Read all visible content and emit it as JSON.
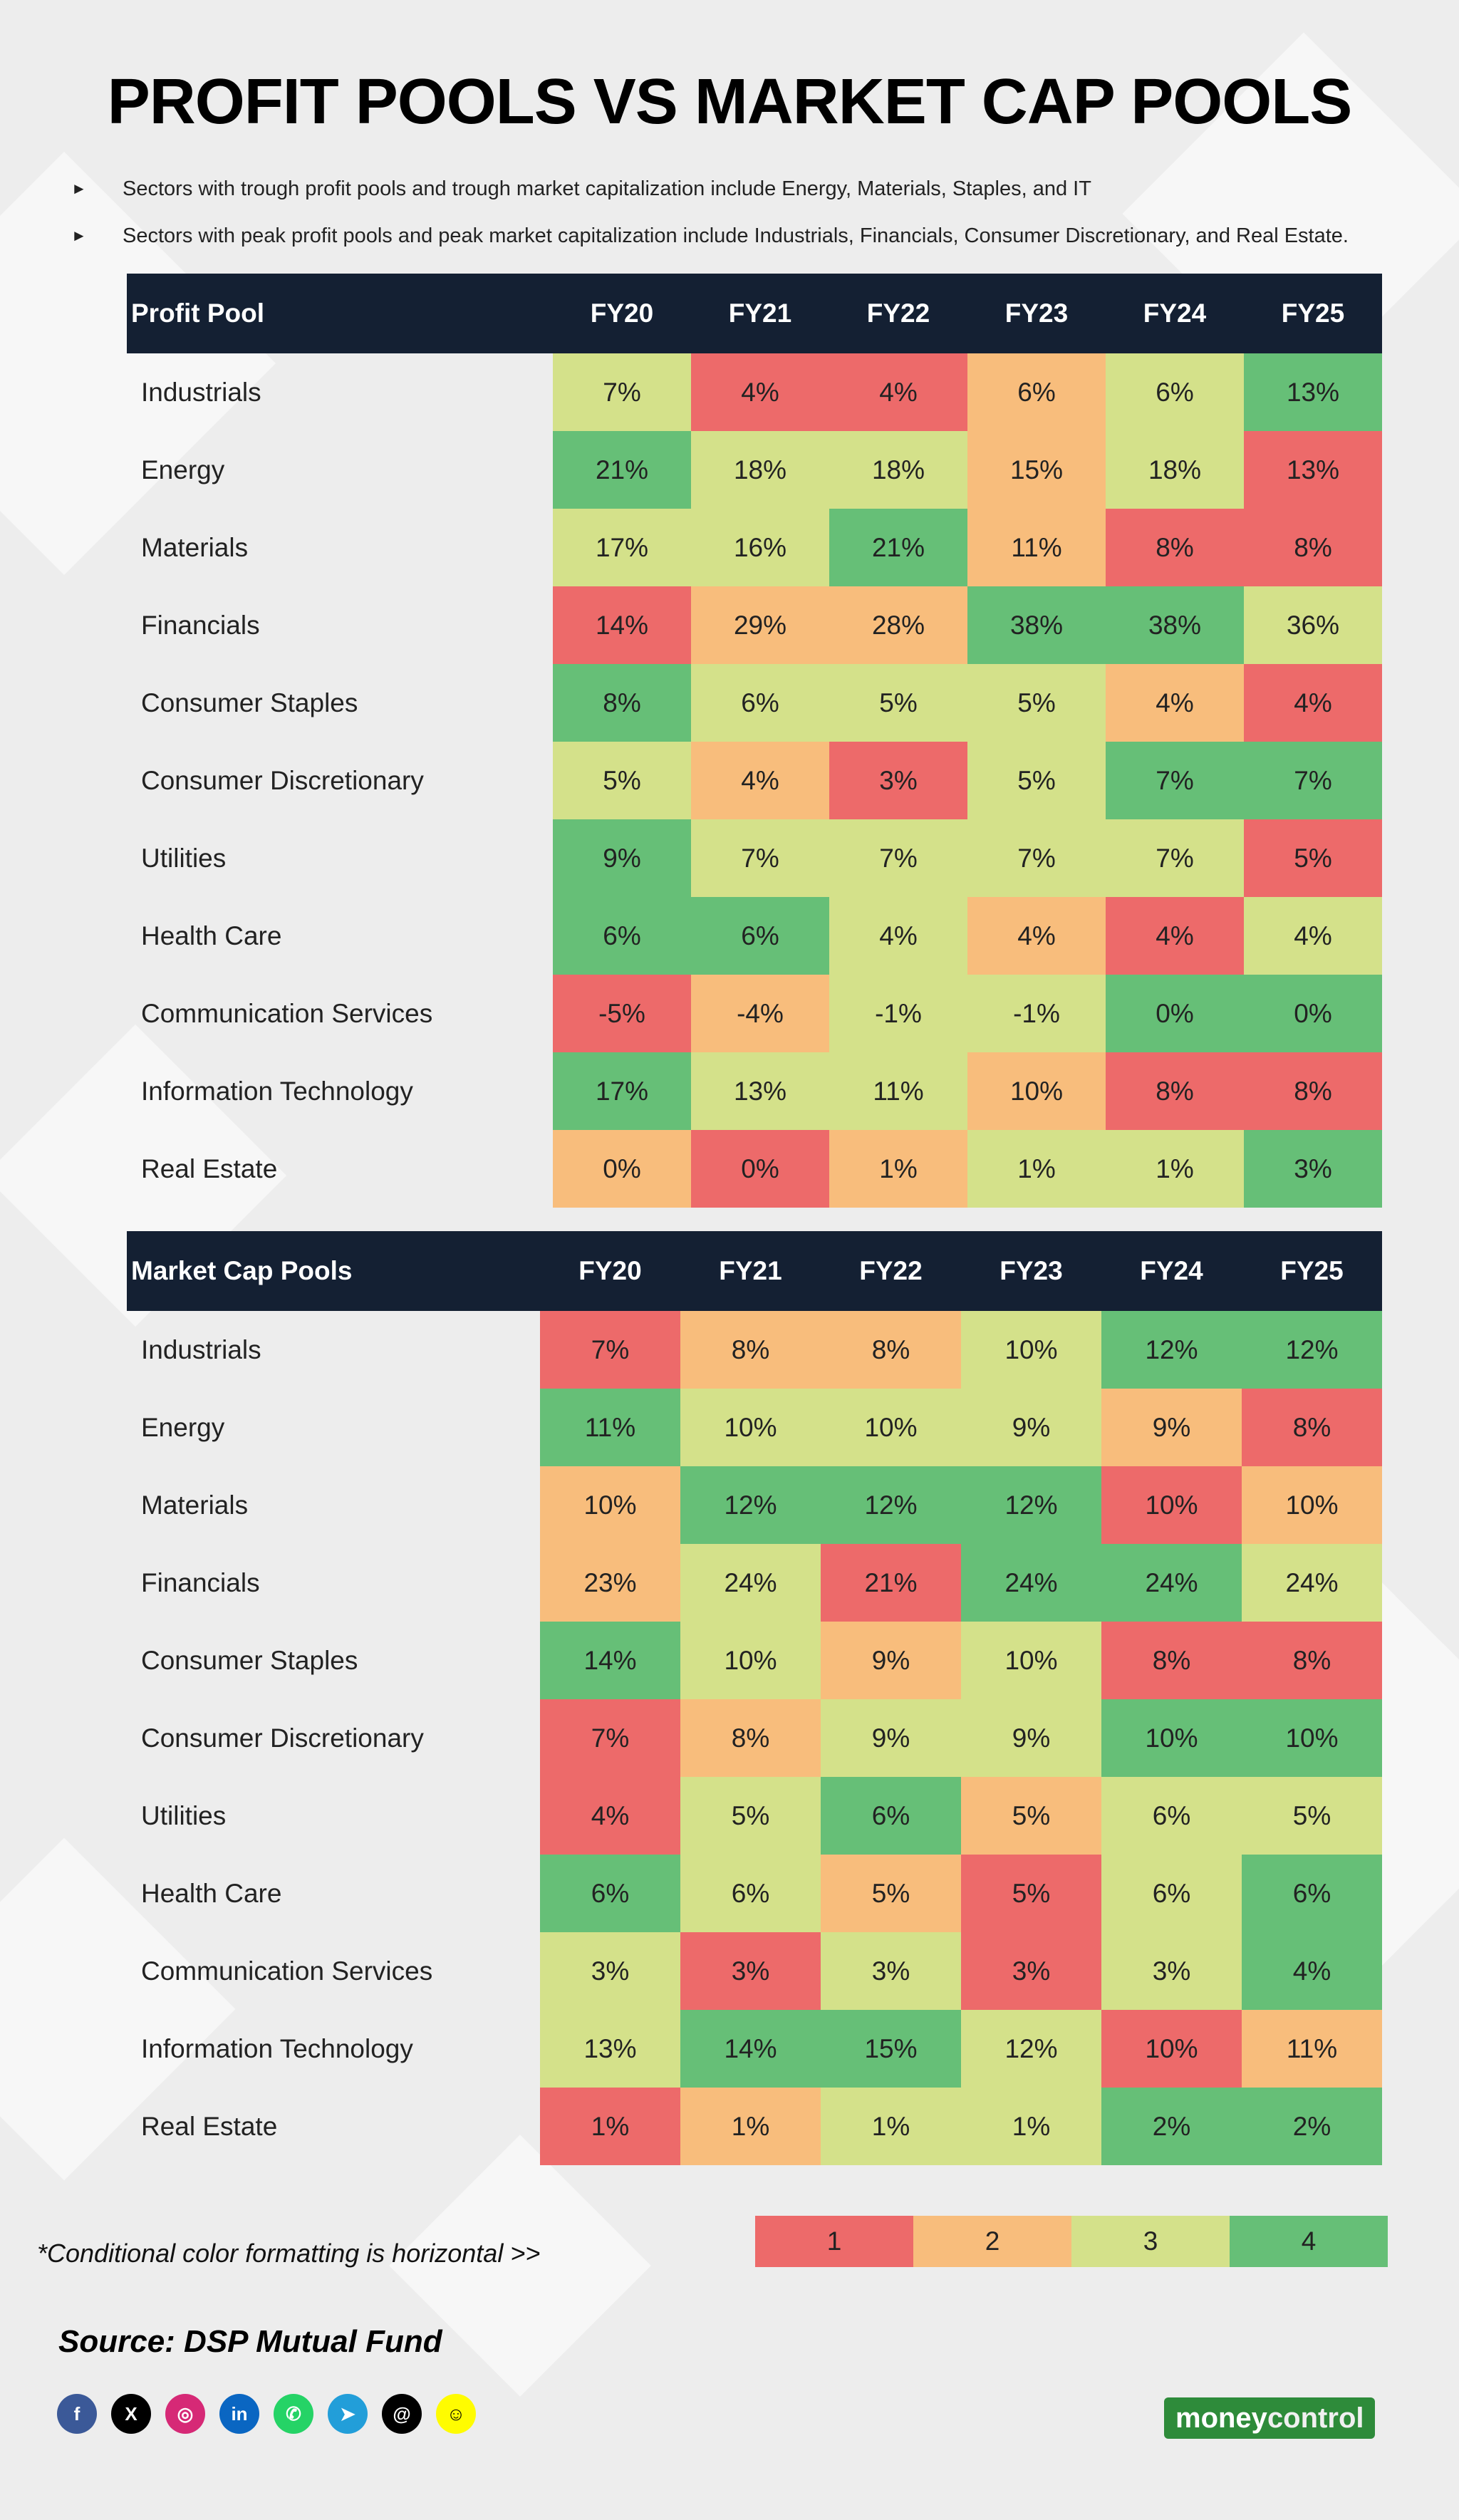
{
  "title": "PROFIT POOLS VS MARKET CAP POOLS",
  "bullets": [
    "Sectors with trough profit pools and trough market capitalization include Energy, Materials, Staples, and IT",
    "Sectors with peak profit pools and peak market capitalization include Industrials, Financials, Consumer Discretionary, and Real Estate."
  ],
  "colors": {
    "1": "#ed6a6a",
    "2": "#f8bd7c",
    "3": "#d4e18a",
    "4": "#66bf77",
    "header": "#142033"
  },
  "chart_data": [
    {
      "type": "heatmap",
      "title": "Profit Pool",
      "columns": [
        "FY20",
        "FY21",
        "FY22",
        "FY23",
        "FY24",
        "FY25"
      ],
      "rows": [
        {
          "sector": "Industrials",
          "values": [
            "7%",
            "4%",
            "4%",
            "6%",
            "6%",
            "13%"
          ],
          "shade": [
            3,
            1,
            1,
            2,
            3,
            4
          ]
        },
        {
          "sector": "Energy",
          "values": [
            "21%",
            "18%",
            "18%",
            "15%",
            "18%",
            "13%"
          ],
          "shade": [
            4,
            3,
            3,
            2,
            3,
            1
          ]
        },
        {
          "sector": "Materials",
          "values": [
            "17%",
            "16%",
            "21%",
            "11%",
            "8%",
            "8%"
          ],
          "shade": [
            3,
            3,
            4,
            2,
            1,
            1
          ]
        },
        {
          "sector": "Financials",
          "values": [
            "14%",
            "29%",
            "28%",
            "38%",
            "38%",
            "36%"
          ],
          "shade": [
            1,
            2,
            2,
            4,
            4,
            3
          ]
        },
        {
          "sector": "Consumer Staples",
          "values": [
            "8%",
            "6%",
            "5%",
            "5%",
            "4%",
            "4%"
          ],
          "shade": [
            4,
            3,
            3,
            3,
            2,
            1
          ]
        },
        {
          "sector": "Consumer Discretionary",
          "values": [
            "5%",
            "4%",
            "3%",
            "5%",
            "7%",
            "7%"
          ],
          "shade": [
            3,
            2,
            1,
            3,
            4,
            4
          ]
        },
        {
          "sector": "Utilities",
          "values": [
            "9%",
            "7%",
            "7%",
            "7%",
            "7%",
            "5%"
          ],
          "shade": [
            4,
            3,
            3,
            3,
            3,
            1
          ]
        },
        {
          "sector": "Health Care",
          "values": [
            "6%",
            "6%",
            "4%",
            "4%",
            "4%",
            "4%"
          ],
          "shade": [
            4,
            4,
            3,
            2,
            1,
            3
          ]
        },
        {
          "sector": "Communication Services",
          "values": [
            "-5%",
            "-4%",
            "-1%",
            "-1%",
            "0%",
            "0%"
          ],
          "shade": [
            1,
            2,
            3,
            3,
            4,
            4
          ]
        },
        {
          "sector": "Information Technology",
          "values": [
            "17%",
            "13%",
            "11%",
            "10%",
            "8%",
            "8%"
          ],
          "shade": [
            4,
            3,
            3,
            2,
            1,
            1
          ]
        },
        {
          "sector": "Real Estate",
          "values": [
            "0%",
            "0%",
            "1%",
            "1%",
            "1%",
            "3%"
          ],
          "shade": [
            2,
            1,
            2,
            3,
            3,
            4
          ]
        }
      ]
    },
    {
      "type": "heatmap",
      "title": "Market Cap Pools",
      "columns": [
        "FY20",
        "FY21",
        "FY22",
        "FY23",
        "FY24",
        "FY25"
      ],
      "rows": [
        {
          "sector": "Industrials",
          "values": [
            "7%",
            "8%",
            "8%",
            "10%",
            "12%",
            "12%"
          ],
          "shade": [
            1,
            2,
            2,
            3,
            4,
            4
          ]
        },
        {
          "sector": "Energy",
          "values": [
            "11%",
            "10%",
            "10%",
            "9%",
            "9%",
            "8%"
          ],
          "shade": [
            4,
            3,
            3,
            3,
            2,
            1
          ]
        },
        {
          "sector": "Materials",
          "values": [
            "10%",
            "12%",
            "12%",
            "12%",
            "10%",
            "10%"
          ],
          "shade": [
            2,
            4,
            4,
            4,
            1,
            2
          ]
        },
        {
          "sector": "Financials",
          "values": [
            "23%",
            "24%",
            "21%",
            "24%",
            "24%",
            "24%"
          ],
          "shade": [
            2,
            3,
            1,
            4,
            4,
            3
          ]
        },
        {
          "sector": "Consumer Staples",
          "values": [
            "14%",
            "10%",
            "9%",
            "10%",
            "8%",
            "8%"
          ],
          "shade": [
            4,
            3,
            2,
            3,
            1,
            1
          ]
        },
        {
          "sector": "Consumer Discretionary",
          "values": [
            "7%",
            "8%",
            "9%",
            "9%",
            "10%",
            "10%"
          ],
          "shade": [
            1,
            2,
            3,
            3,
            4,
            4
          ]
        },
        {
          "sector": "Utilities",
          "values": [
            "4%",
            "5%",
            "6%",
            "5%",
            "6%",
            "5%"
          ],
          "shade": [
            1,
            3,
            4,
            2,
            3,
            3
          ]
        },
        {
          "sector": "Health Care",
          "values": [
            "6%",
            "6%",
            "5%",
            "5%",
            "6%",
            "6%"
          ],
          "shade": [
            4,
            3,
            2,
            1,
            3,
            4
          ]
        },
        {
          "sector": "Communication Services",
          "values": [
            "3%",
            "3%",
            "3%",
            "3%",
            "3%",
            "4%"
          ],
          "shade": [
            3,
            1,
            3,
            1,
            3,
            4
          ]
        },
        {
          "sector": "Information Technology",
          "values": [
            "13%",
            "14%",
            "15%",
            "12%",
            "10%",
            "11%"
          ],
          "shade": [
            3,
            4,
            4,
            3,
            1,
            2
          ]
        },
        {
          "sector": "Real Estate",
          "values": [
            "1%",
            "1%",
            "1%",
            "1%",
            "2%",
            "2%"
          ],
          "shade": [
            1,
            2,
            3,
            3,
            4,
            4
          ]
        }
      ]
    }
  ],
  "footnote": "*Conditional color formatting is horizontal >>",
  "legend": [
    "1",
    "2",
    "3",
    "4"
  ],
  "source": "Source: DSP Mutual Fund",
  "socials": [
    {
      "icon": "facebook-icon",
      "glyph": "f",
      "color": "#3b5998"
    },
    {
      "icon": "x-icon",
      "glyph": "X",
      "color": "#000000"
    },
    {
      "icon": "instagram-icon",
      "glyph": "◎",
      "color": "#d62976"
    },
    {
      "icon": "linkedin-icon",
      "glyph": "in",
      "color": "#0a66c2"
    },
    {
      "icon": "whatsapp-icon",
      "glyph": "✆",
      "color": "#25d366"
    },
    {
      "icon": "telegram-icon",
      "glyph": "➤",
      "color": "#229ed9"
    },
    {
      "icon": "threads-icon",
      "glyph": "@",
      "color": "#000000"
    },
    {
      "icon": "snapchat-icon",
      "glyph": "☺",
      "color": "#fffc00"
    }
  ],
  "logo": {
    "part1": "money",
    "part2": "control"
  }
}
